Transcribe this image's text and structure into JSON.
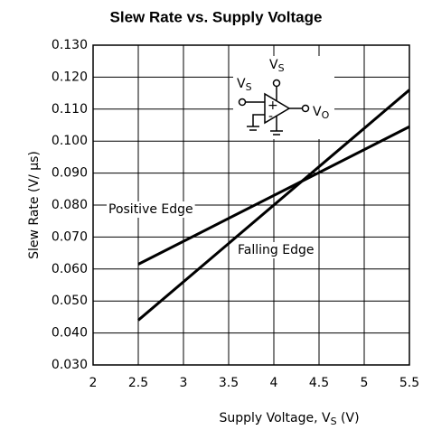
{
  "chart_data": {
    "type": "line",
    "title": "Slew Rate vs. Supply Voltage",
    "ylabel": "Slew Rate (V/ μs)",
    "xlabel_parts": [
      "Supply Voltage, V",
      "S",
      " (V)"
    ],
    "x": [
      2.5,
      5.5
    ],
    "series": [
      {
        "name": "Positive Edge",
        "color": "#000000",
        "values": [
          0.0615,
          0.1045
        ]
      },
      {
        "name": "Falling Edge",
        "color": "#000000",
        "values": [
          0.044,
          0.116
        ]
      }
    ],
    "xlim": [
      2,
      5.5
    ],
    "xticks": [
      2,
      2.5,
      3,
      3.5,
      4,
      4.5,
      5,
      5.5
    ],
    "ylim": [
      0.03,
      0.13
    ],
    "yticks": [
      {
        "value": 0.03,
        "label": "0.030"
      },
      {
        "value": 0.04,
        "label": "0.040"
      },
      {
        "value": 0.05,
        "label": "0.050"
      },
      {
        "value": 0.06,
        "label": "0.060"
      },
      {
        "value": 0.07,
        "label": "0.070"
      },
      {
        "value": 0.08,
        "label": "0.080"
      },
      {
        "value": 0.09,
        "label": "0.090"
      },
      {
        "value": 0.1,
        "label": "0.100"
      },
      {
        "value": 0.11,
        "label": "0.110"
      },
      {
        "value": 0.12,
        "label": "0.120"
      },
      {
        "value": 0.13,
        "label": "0.130"
      }
    ],
    "grid": true,
    "schematic_labels": {
      "v_supply": [
        "V",
        "S"
      ],
      "v_out": [
        "V",
        "O"
      ],
      "plus": "+",
      "minus": "-"
    }
  }
}
